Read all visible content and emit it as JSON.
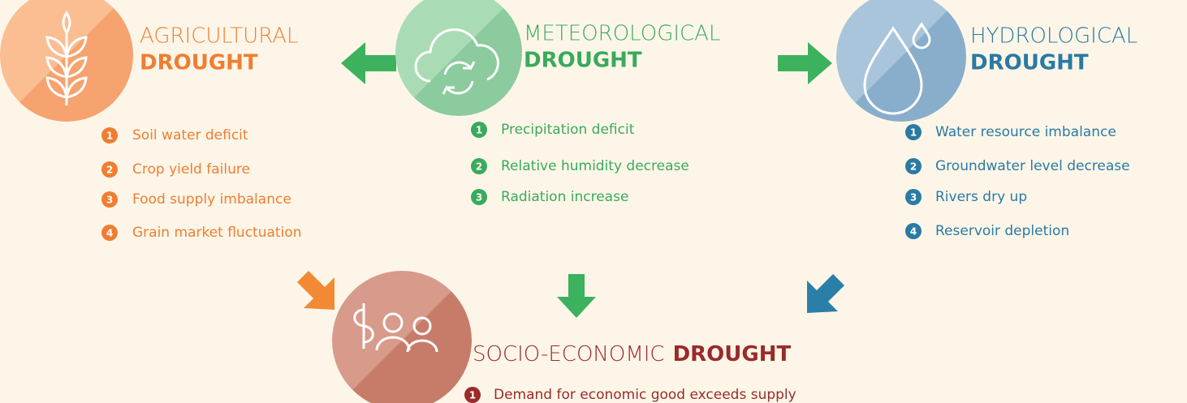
{
  "nodes": [
    {
      "title": "AGRICULTURAL",
      "title_bold": "DROUGHT",
      "items": [
        {
          "number": 1,
          "text": "Soil water deficit"
        },
        {
          "number": 2,
          "text": "Crop yield failure"
        },
        {
          "number": 3,
          "text": "Food supply imbalance"
        },
        {
          "number": 4,
          "text": "Grain market fluctuation"
        }
      ]
    },
    {
      "title": "METEOROLOGICAL",
      "title_bold": "DROUGHT",
      "items": [
        {
          "number": 1,
          "text": "Precipitation deficit"
        },
        {
          "number": 2,
          "text": "Relative humidity decrease"
        },
        {
          "number": 3,
          "text": "Radiation increase"
        }
      ]
    },
    {
      "title": "HYDROLOGICAL",
      "title_bold": "DROUGHT",
      "items": [
        {
          "number": 1,
          "text": "Water resource imbalance"
        },
        {
          "number": 2,
          "text": "Groundwater level decrease"
        },
        {
          "number": 3,
          "text": "Rivers dry up"
        },
        {
          "number": 4,
          "text": "Reservoir depletion"
        }
      ]
    },
    {
      "title": "SOCIO-ECONOMIC",
      "title_bold": "DROUGHT",
      "items": [
        {
          "number": 1,
          "text": "Demand for economic good exceeds supply"
        }
      ]
    }
  ]
}
